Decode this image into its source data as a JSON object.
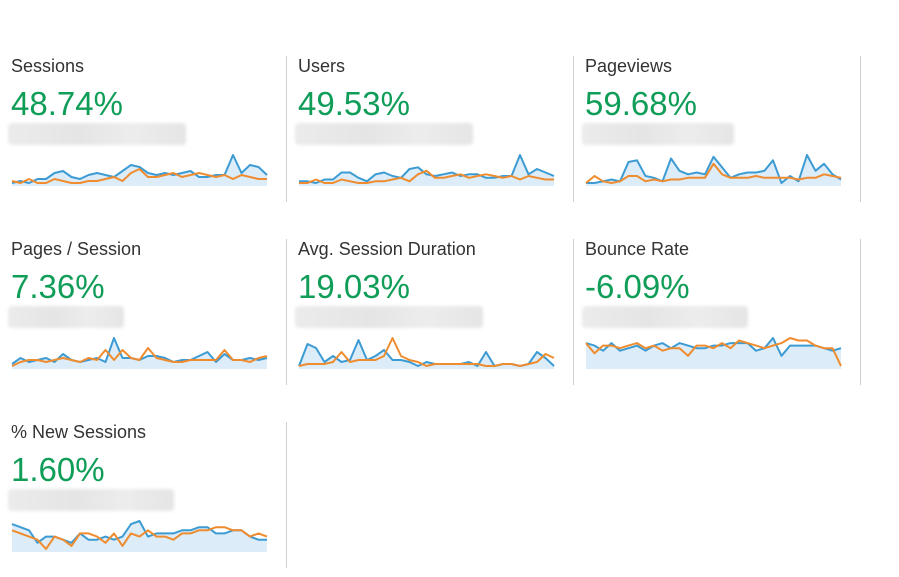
{
  "colors": {
    "value_text": "#0f9d58",
    "series_current": "#3d9bd3",
    "series_previous": "#ef8c2f",
    "area_fill": "#dcecf8"
  },
  "metrics": [
    {
      "label": "Sessions",
      "value": "48.74%",
      "current": [
        4,
        5,
        4,
        6,
        6,
        9,
        10,
        7,
        6,
        8,
        9,
        8,
        7,
        10,
        13,
        12,
        9,
        8,
        9,
        8,
        9,
        10,
        7,
        7,
        8,
        8,
        18,
        9,
        13,
        12,
        8
      ],
      "previous": [
        5,
        4,
        6,
        4,
        4,
        6,
        5,
        4,
        4,
        5,
        5,
        6,
        7,
        5,
        9,
        11,
        7,
        7,
        8,
        9,
        7,
        8,
        9,
        8,
        7,
        8,
        6,
        8,
        7,
        6,
        6
      ]
    },
    {
      "label": "Users",
      "value": "49.53%",
      "current": [
        5,
        5,
        4,
        6,
        6,
        10,
        10,
        7,
        5,
        9,
        10,
        8,
        7,
        12,
        13,
        9,
        8,
        9,
        10,
        8,
        9,
        9,
        7,
        7,
        8,
        8,
        20,
        9,
        12,
        10,
        8
      ],
      "previous": [
        4,
        4,
        6,
        4,
        4,
        6,
        5,
        4,
        4,
        5,
        5,
        6,
        7,
        5,
        9,
        11,
        7,
        7,
        8,
        9,
        7,
        8,
        9,
        8,
        7,
        8,
        6,
        8,
        7,
        6,
        6
      ]
    },
    {
      "label": "Pageviews",
      "value": "59.68%",
      "current": [
        5,
        5,
        6,
        7,
        6,
        17,
        18,
        9,
        8,
        6,
        19,
        12,
        10,
        11,
        10,
        20,
        14,
        8,
        10,
        11,
        11,
        12,
        18,
        5,
        9,
        6,
        21,
        12,
        16,
        10,
        7
      ],
      "previous": [
        5,
        9,
        6,
        5,
        6,
        9,
        9,
        6,
        7,
        6,
        7,
        7,
        8,
        8,
        8,
        16,
        10,
        8,
        8,
        8,
        9,
        8,
        8,
        8,
        8,
        7,
        8,
        8,
        10,
        9,
        8
      ]
    },
    {
      "label": "Pages / Session",
      "value": "7.36%",
      "current": [
        6,
        9,
        7,
        8,
        9,
        7,
        11,
        8,
        7,
        8,
        9,
        7,
        19,
        9,
        9,
        8,
        10,
        10,
        9,
        7,
        8,
        8,
        10,
        12,
        7,
        11,
        8,
        8,
        9,
        8,
        9
      ],
      "previous": [
        5,
        7,
        8,
        8,
        7,
        8,
        9,
        8,
        7,
        9,
        8,
        13,
        8,
        13,
        9,
        8,
        14,
        9,
        8,
        7,
        7,
        8,
        8,
        8,
        8,
        13,
        8,
        8,
        7,
        9,
        10
      ]
    },
    {
      "label": "Avg. Session Duration",
      "value": "19.03%",
      "current": [
        5,
        16,
        14,
        7,
        10,
        7,
        8,
        18,
        8,
        10,
        13,
        8,
        8,
        7,
        5,
        7,
        6,
        6,
        6,
        6,
        7,
        5,
        12,
        5,
        6,
        6,
        5,
        6,
        12,
        9,
        5
      ],
      "previous": [
        5,
        6,
        6,
        6,
        7,
        12,
        7,
        8,
        8,
        8,
        10,
        19,
        10,
        8,
        7,
        5,
        6,
        6,
        6,
        6,
        6,
        6,
        5,
        5,
        6,
        6,
        5,
        6,
        7,
        11,
        9
      ]
    },
    {
      "label": "Bounce Rate",
      "value": "-6.09%",
      "current": [
        16,
        15,
        13,
        16,
        13,
        14,
        15,
        13,
        15,
        16,
        14,
        16,
        15,
        14,
        14,
        15,
        15,
        16,
        16,
        16,
        13,
        14,
        18,
        11,
        15,
        15,
        15,
        15,
        14,
        13,
        14
      ],
      "previous": [
        16,
        12,
        15,
        15,
        14,
        15,
        16,
        14,
        15,
        13,
        14,
        14,
        11,
        15,
        15,
        14,
        16,
        14,
        17,
        16,
        15,
        14,
        15,
        16,
        18,
        17,
        17,
        15,
        14,
        14,
        7
      ]
    },
    {
      "label": "% New Sessions",
      "value": "1.60%",
      "current": [
        15,
        14,
        13,
        9,
        11,
        11,
        10,
        9,
        12,
        10,
        10,
        11,
        10,
        11,
        15,
        16,
        11,
        12,
        12,
        12,
        13,
        13,
        14,
        14,
        12,
        12,
        13,
        13,
        11,
        10,
        10
      ],
      "previous": [
        13,
        12,
        11,
        10,
        7,
        11,
        10,
        8,
        12,
        12,
        11,
        9,
        12,
        8,
        12,
        11,
        13,
        11,
        11,
        10,
        12,
        12,
        13,
        13,
        14,
        14,
        13,
        13,
        11,
        12,
        11
      ]
    }
  ]
}
